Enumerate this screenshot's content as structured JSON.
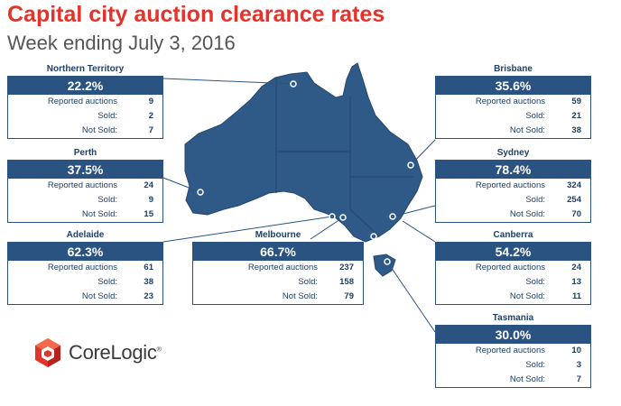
{
  "header": {
    "title": "Capital city auction clearance rates",
    "subtitle": "Week ending July 3, 2016"
  },
  "labels": {
    "reported": "Reported auctions",
    "sold": "Sold:",
    "not_sold": "Not Sold:"
  },
  "colors": {
    "title": "#e5322b",
    "card_header": "#2b5382",
    "map_fill": "#2f5a87"
  },
  "cities": {
    "northern_territory": {
      "name": "Northern Territory",
      "rate": "22.2%",
      "reported": "9",
      "sold": "2",
      "not_sold": "7"
    },
    "perth": {
      "name": "Perth",
      "rate": "37.5%",
      "reported": "24",
      "sold": "9",
      "not_sold": "15"
    },
    "adelaide": {
      "name": "Adelaide",
      "rate": "62.3%",
      "reported": "61",
      "sold": "38",
      "not_sold": "23"
    },
    "melbourne": {
      "name": "Melbourne",
      "rate": "66.7%",
      "reported": "237",
      "sold": "158",
      "not_sold": "79"
    },
    "brisbane": {
      "name": "Brisbane",
      "rate": "35.6%",
      "reported": "59",
      "sold": "21",
      "not_sold": "38"
    },
    "sydney": {
      "name": "Sydney",
      "rate": "78.4%",
      "reported": "324",
      "sold": "254",
      "not_sold": "70"
    },
    "canberra": {
      "name": "Canberra",
      "rate": "54.2%",
      "reported": "24",
      "sold": "13",
      "not_sold": "11"
    },
    "tasmania": {
      "name": "Tasmania",
      "rate": "30.0%",
      "reported": "10",
      "sold": "3",
      "not_sold": "7"
    }
  },
  "logo": {
    "name": "CoreLogic",
    "mark": "®"
  }
}
